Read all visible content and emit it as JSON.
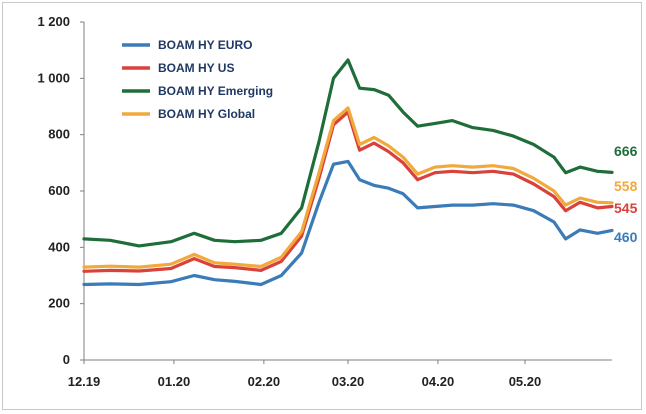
{
  "chart_data": {
    "type": "line",
    "title": "",
    "xlabel": "",
    "ylabel": "",
    "ylim": [
      0,
      1200
    ],
    "yticks": [
      {
        "value": 0,
        "label": "0"
      },
      {
        "value": 200,
        "label": "200"
      },
      {
        "value": 400,
        "label": "400"
      },
      {
        "value": 600,
        "label": "600"
      },
      {
        "value": 800,
        "label": "800"
      },
      {
        "value": 1000,
        "label": "1 000"
      },
      {
        "value": 1200,
        "label": "1 200"
      }
    ],
    "xlim": [
      "2019-12-01",
      "2020-05-31"
    ],
    "xticks": [
      {
        "value": "2019-12-01",
        "label": "12.19"
      },
      {
        "value": "2020-01-01",
        "label": "01.20"
      },
      {
        "value": "2020-02-01",
        "label": "02.20"
      },
      {
        "value": "2020-03-01",
        "label": "03.20"
      },
      {
        "value": "2020-04-01",
        "label": "04.20"
      },
      {
        "value": "2020-05-01",
        "label": "05.20"
      }
    ],
    "grid": false,
    "legend": "top-left",
    "x": [
      "2019-12-01",
      "2019-12-10",
      "2019-12-20",
      "2019-12-31",
      "2020-01-08",
      "2020-01-15",
      "2020-01-22",
      "2020-01-31",
      "2020-02-07",
      "2020-02-14",
      "2020-02-20",
      "2020-02-25",
      "2020-03-01",
      "2020-03-05",
      "2020-03-10",
      "2020-03-15",
      "2020-03-20",
      "2020-03-25",
      "2020-03-31",
      "2020-04-06",
      "2020-04-13",
      "2020-04-20",
      "2020-04-27",
      "2020-05-04",
      "2020-05-11",
      "2020-05-15",
      "2020-05-20",
      "2020-05-26",
      "2020-05-31"
    ],
    "series": [
      {
        "name": "BOAM HY EURO",
        "color": "#3a7bb8",
        "end_label": "460",
        "values": [
          268,
          270,
          268,
          278,
          300,
          285,
          279,
          268,
          300,
          380,
          560,
          695,
          705,
          640,
          620,
          610,
          590,
          540,
          545,
          550,
          550,
          555,
          550,
          530,
          490,
          430,
          462,
          450,
          460
        ]
      },
      {
        "name": "BOAM HY US",
        "color": "#d9423b",
        "end_label": "545",
        "values": [
          315,
          318,
          316,
          325,
          360,
          332,
          328,
          318,
          350,
          440,
          645,
          835,
          880,
          745,
          770,
          740,
          700,
          640,
          665,
          670,
          665,
          670,
          660,
          625,
          580,
          530,
          560,
          540,
          545
        ]
      },
      {
        "name": "BOAM HY Emerging",
        "color": "#1f6e3a",
        "end_label": "666",
        "values": [
          430,
          425,
          405,
          420,
          450,
          425,
          420,
          425,
          450,
          540,
          775,
          1000,
          1065,
          965,
          960,
          940,
          880,
          830,
          840,
          850,
          825,
          815,
          795,
          765,
          720,
          665,
          685,
          670,
          666
        ]
      },
      {
        "name": "BOAM HY Global",
        "color": "#f2a93b",
        "end_label": "558",
        "values": [
          330,
          333,
          330,
          340,
          375,
          345,
          340,
          332,
          365,
          455,
          665,
          850,
          895,
          765,
          790,
          760,
          720,
          660,
          685,
          690,
          685,
          690,
          680,
          645,
          600,
          550,
          575,
          560,
          558
        ]
      }
    ]
  }
}
